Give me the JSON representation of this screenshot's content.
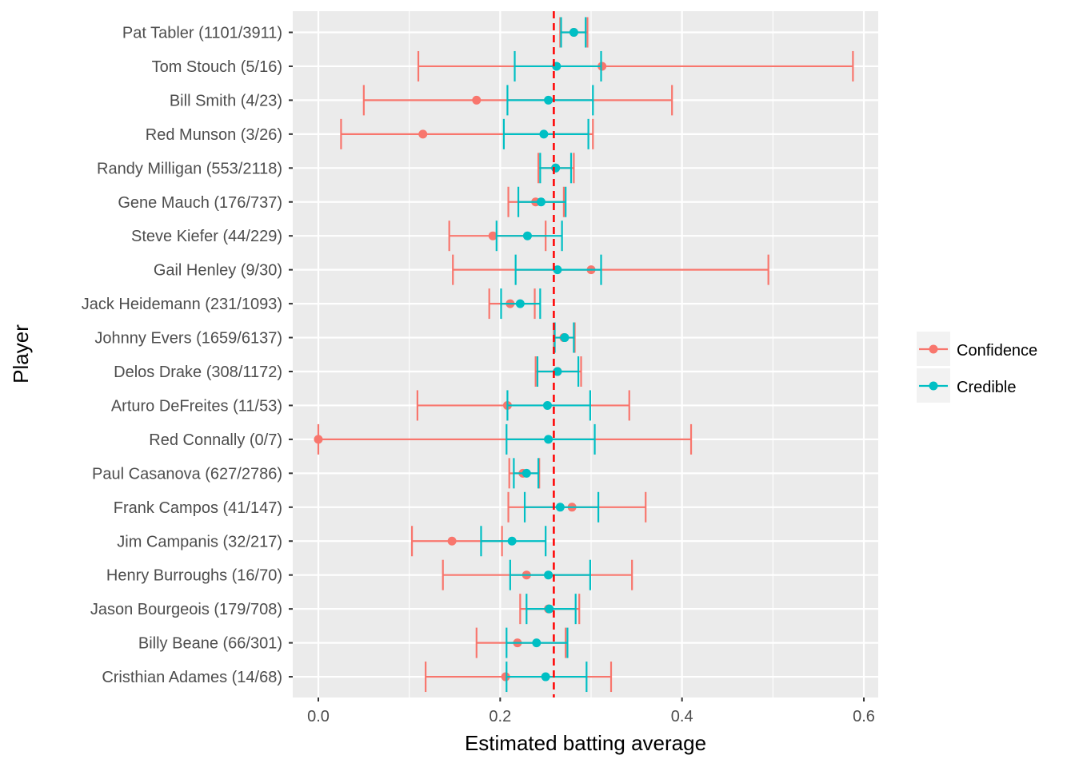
{
  "chart_data": {
    "type": "errorbar",
    "title": "",
    "xlabel": "Estimated batting average",
    "ylabel": "Player",
    "xlim": [
      -0.03,
      0.615
    ],
    "xticks": [
      0.0,
      0.2,
      0.4,
      0.6
    ],
    "xtick_labels": [
      "0.0",
      "0.2",
      "0.4",
      "0.6"
    ],
    "grid": true,
    "reference_line": {
      "x": 0.259,
      "style": "dashed",
      "color": "#ff0000"
    },
    "legend": {
      "position": "right",
      "entries": [
        {
          "name": "Confidence",
          "color": "#f8766d"
        },
        {
          "name": "Credible",
          "color": "#00bfc4"
        }
      ]
    },
    "categories": [
      "Pat Tabler (1101/3911)",
      "Tom Stouch (5/16)",
      "Bill Smith (4/23)",
      "Red Munson (3/26)",
      "Randy Milligan (553/2118)",
      "Gene Mauch (176/737)",
      "Steve Kiefer (44/229)",
      "Gail Henley (9/30)",
      "Jack Heidemann (231/1093)",
      "Johnny Evers (1659/6137)",
      "Delos Drake (308/1172)",
      "Arturo DeFreites (11/53)",
      "Red Connally (0/7)",
      "Paul Casanova (627/2786)",
      "Frank Campos (41/147)",
      "Jim Campanis (32/217)",
      "Henry Burroughs (16/70)",
      "Jason Bourgeois (179/708)",
      "Billy Beane (66/301)",
      "Cristhian Adames (14/68)"
    ],
    "series": [
      {
        "name": "Confidence",
        "color": "#f8766d",
        "estimate": [
          0.281,
          0.312,
          0.174,
          0.115,
          0.261,
          0.239,
          0.192,
          0.3,
          0.211,
          0.27,
          0.263,
          0.208,
          0.0,
          0.225,
          0.279,
          0.147,
          0.229,
          0.253,
          0.219,
          0.206
        ],
        "low": [
          0.266,
          0.11,
          0.05,
          0.025,
          0.242,
          0.209,
          0.144,
          0.148,
          0.188,
          0.259,
          0.239,
          0.109,
          0.0,
          0.21,
          0.209,
          0.103,
          0.137,
          0.222,
          0.174,
          0.118
        ],
        "high": [
          0.296,
          0.588,
          0.389,
          0.302,
          0.281,
          0.27,
          0.25,
          0.495,
          0.238,
          0.282,
          0.289,
          0.342,
          0.41,
          0.243,
          0.36,
          0.202,
          0.345,
          0.287,
          0.272,
          0.322
        ]
      },
      {
        "name": "Credible",
        "color": "#00bfc4",
        "estimate": [
          0.281,
          0.262,
          0.253,
          0.248,
          0.261,
          0.245,
          0.23,
          0.263,
          0.222,
          0.271,
          0.263,
          0.252,
          0.253,
          0.229,
          0.266,
          0.213,
          0.253,
          0.254,
          0.24,
          0.25
        ],
        "low": [
          0.267,
          0.216,
          0.208,
          0.204,
          0.244,
          0.22,
          0.196,
          0.217,
          0.201,
          0.26,
          0.241,
          0.208,
          0.207,
          0.215,
          0.227,
          0.179,
          0.211,
          0.229,
          0.207,
          0.207
        ],
        "high": [
          0.294,
          0.311,
          0.302,
          0.297,
          0.278,
          0.272,
          0.268,
          0.311,
          0.244,
          0.281,
          0.286,
          0.299,
          0.304,
          0.242,
          0.308,
          0.25,
          0.299,
          0.283,
          0.274,
          0.295
        ]
      }
    ]
  }
}
